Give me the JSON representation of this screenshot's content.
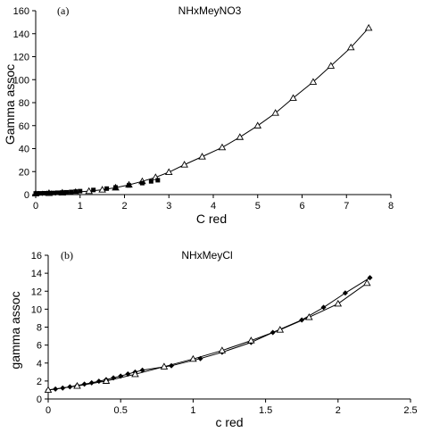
{
  "chart_data": [
    {
      "type": "scatter",
      "panel_label": "(a)",
      "title": "NHxMeyNO3",
      "xlabel": "C red",
      "ylabel": "Gamma assoc",
      "xlim": [
        0,
        8
      ],
      "ylim": [
        0,
        160
      ],
      "xticks": [
        0,
        1,
        2,
        3,
        4,
        5,
        6,
        7,
        8
      ],
      "yticks": [
        0,
        20,
        40,
        60,
        80,
        100,
        120,
        140,
        160
      ],
      "grid": false,
      "series": [
        {
          "marker": "triangle-open",
          "line": true,
          "x": [
            0.0,
            0.3,
            0.6,
            0.9,
            1.2,
            1.5,
            1.8,
            2.1,
            2.4,
            2.7,
            3.0,
            3.35,
            3.75,
            4.2,
            4.6,
            5.0,
            5.4,
            5.8,
            6.25,
            6.65,
            7.1,
            7.5
          ],
          "y": [
            0.8,
            1.2,
            1.6,
            2.2,
            3.0,
            4.2,
            6.0,
            8.5,
            11.5,
            15.0,
            19.5,
            26.0,
            33.0,
            41.0,
            50.0,
            60.0,
            71.0,
            84.0,
            98.0,
            112.0,
            128.0,
            145.0
          ]
        },
        {
          "marker": "square-filled",
          "line": false,
          "x": [
            0.0,
            0.1,
            0.2,
            0.3,
            0.4,
            0.5,
            0.6,
            0.7,
            0.8,
            0.9,
            1.0,
            1.3,
            1.6,
            1.8,
            2.1,
            2.4,
            2.6,
            2.75
          ],
          "y": [
            1.0,
            1.1,
            1.2,
            1.3,
            1.4,
            1.6,
            1.8,
            2.0,
            2.3,
            2.6,
            3.0,
            4.0,
            5.2,
            6.2,
            8.0,
            10.0,
            11.5,
            12.5
          ]
        },
        {
          "marker": "diamond-filled",
          "line": false,
          "x": [
            0.05,
            0.15,
            0.25,
            0.35,
            0.45,
            0.55,
            0.65
          ],
          "y": [
            1.0,
            1.1,
            1.2,
            1.3,
            1.4,
            1.5,
            1.7
          ]
        }
      ]
    },
    {
      "type": "scatter",
      "panel_label": "(b)",
      "title": "NHxMeyCl",
      "xlabel": "c red",
      "ylabel": "gamma assoc",
      "xlim": [
        0,
        2.5
      ],
      "ylim": [
        0,
        16
      ],
      "xticks": [
        0,
        0.5,
        1,
        1.5,
        2,
        2.5
      ],
      "yticks": [
        0,
        2,
        4,
        6,
        8,
        10,
        12,
        14,
        16
      ],
      "grid": false,
      "series": [
        {
          "marker": "diamond-filled",
          "line": true,
          "x": [
            0.0,
            0.05,
            0.1,
            0.15,
            0.2,
            0.25,
            0.3,
            0.35,
            0.4,
            0.45,
            0.5,
            0.55,
            0.6,
            0.65,
            0.85,
            1.05,
            1.2,
            1.4,
            1.55,
            1.75,
            1.9,
            2.05,
            2.22
          ],
          "y": [
            1.0,
            1.1,
            1.22,
            1.35,
            1.5,
            1.65,
            1.8,
            1.98,
            2.15,
            2.35,
            2.55,
            2.78,
            3.0,
            3.2,
            3.7,
            4.5,
            5.2,
            6.3,
            7.4,
            8.8,
            10.2,
            11.8,
            13.5
          ]
        },
        {
          "marker": "triangle-open",
          "line": true,
          "x": [
            0.0,
            0.2,
            0.4,
            0.6,
            0.8,
            1.0,
            1.2,
            1.4,
            1.6,
            1.8,
            2.0,
            2.2
          ],
          "y": [
            1.0,
            1.45,
            2.0,
            2.75,
            3.6,
            4.45,
            5.4,
            6.5,
            7.7,
            9.1,
            10.6,
            12.9
          ]
        }
      ]
    }
  ]
}
